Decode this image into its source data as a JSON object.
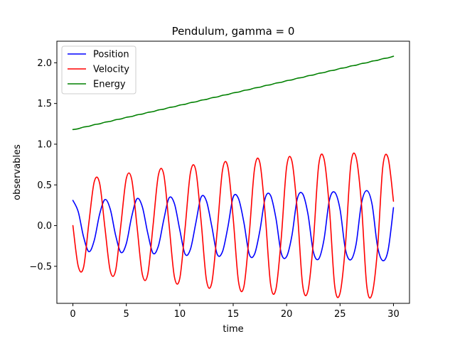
{
  "chart_data": {
    "type": "line",
    "title": "Pendulum, gamma = 0",
    "xlabel": "time",
    "ylabel": "observables",
    "xlim": [
      -1.5,
      31.5
    ],
    "ylim": [
      -0.955,
      2.265
    ],
    "x_ticks": [
      0,
      5,
      10,
      15,
      20,
      25,
      30
    ],
    "x_tick_labels": [
      "0",
      "5",
      "10",
      "15",
      "20",
      "25",
      "30"
    ],
    "y_ticks": [
      -0.5,
      0.0,
      0.5,
      1.0,
      1.5,
      2.0
    ],
    "y_tick_labels": [
      "−0.5",
      "0.0",
      "0.5",
      "1.0",
      "1.5",
      "2.0"
    ],
    "grid": false,
    "legend_position": "top-left",
    "x": [
      0,
      0.5,
      1,
      1.5,
      2,
      2.5,
      3,
      3.5,
      4,
      4.5,
      5,
      5.5,
      6,
      6.5,
      7,
      7.5,
      8,
      8.5,
      9,
      9.5,
      10,
      10.5,
      11,
      11.5,
      12,
      12.5,
      13,
      13.5,
      14,
      14.5,
      15,
      15.5,
      16,
      16.5,
      17,
      17.5,
      18,
      18.5,
      19,
      19.5,
      20,
      20.5,
      21,
      21.5,
      22,
      22.5,
      23,
      23.5,
      24,
      24.5,
      25,
      25.5,
      26,
      26.5,
      27,
      27.5,
      28,
      28.5,
      29,
      29.5,
      30
    ],
    "series": [
      {
        "name": "Position",
        "color": "#0000ff",
        "values": [
          0.31,
          0.17,
          -0.14,
          -0.32,
          -0.18,
          0.14,
          0.32,
          0.2,
          -0.12,
          -0.33,
          -0.22,
          0.11,
          0.33,
          0.23,
          -0.09,
          -0.34,
          -0.25,
          0.07,
          0.34,
          0.27,
          -0.05,
          -0.35,
          -0.29,
          0.03,
          0.35,
          0.3,
          -0.01,
          -0.35,
          -0.32,
          -0.02,
          0.35,
          0.33,
          0.04,
          -0.35,
          -0.35,
          -0.06,
          0.34,
          0.37,
          0.09,
          -0.34,
          -0.38,
          -0.12,
          0.33,
          0.39,
          0.14,
          -0.32,
          -0.41,
          -0.17,
          0.31,
          0.41,
          0.2,
          -0.29,
          -0.42,
          -0.23,
          0.27,
          0.43,
          0.26,
          -0.25,
          -0.43,
          -0.3,
          0.22
        ]
      },
      {
        "name": "Velocity",
        "color": "#ff0000",
        "values": [
          0.0,
          -0.5,
          -0.51,
          0.04,
          0.54,
          0.52,
          -0.03,
          -0.56,
          -0.55,
          0.02,
          0.58,
          0.57,
          -0.01,
          -0.6,
          -0.6,
          0.0,
          0.62,
          0.63,
          0.01,
          -0.63,
          -0.65,
          -0.03,
          0.65,
          0.68,
          0.05,
          -0.67,
          -0.7,
          -0.07,
          0.68,
          0.72,
          0.09,
          -0.69,
          -0.75,
          -0.11,
          0.7,
          0.77,
          0.13,
          -0.72,
          -0.78,
          -0.15,
          0.72,
          0.79,
          0.18,
          -0.73,
          -0.8,
          -0.2,
          0.74,
          0.82,
          0.22,
          -0.74,
          -0.83,
          -0.25,
          0.74,
          0.84,
          0.27,
          -0.74,
          -0.84,
          -0.3,
          0.72,
          0.83,
          0.3
        ]
      },
      {
        "name": "Energy",
        "color": "#008000",
        "values": [
          1.18,
          1.19,
          1.21,
          1.22,
          1.24,
          1.25,
          1.27,
          1.28,
          1.3,
          1.31,
          1.33,
          1.34,
          1.36,
          1.37,
          1.39,
          1.4,
          1.42,
          1.43,
          1.45,
          1.46,
          1.48,
          1.49,
          1.51,
          1.52,
          1.54,
          1.55,
          1.57,
          1.58,
          1.6,
          1.61,
          1.63,
          1.64,
          1.66,
          1.67,
          1.69,
          1.7,
          1.72,
          1.73,
          1.75,
          1.76,
          1.78,
          1.79,
          1.81,
          1.82,
          1.84,
          1.85,
          1.87,
          1.88,
          1.9,
          1.91,
          1.93,
          1.94,
          1.96,
          1.97,
          1.99,
          2.0,
          2.02,
          2.03,
          2.05,
          2.06,
          2.08
        ]
      }
    ]
  }
}
